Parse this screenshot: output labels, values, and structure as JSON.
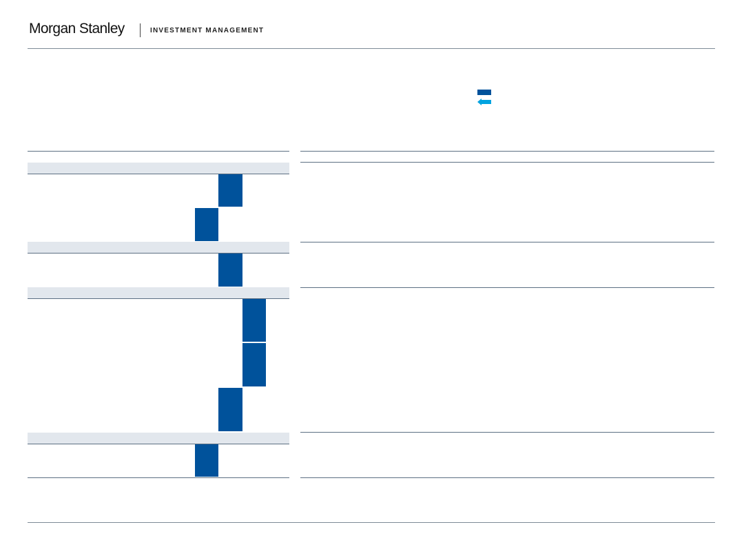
{
  "header": {
    "brand_name": "Morgan Stanley",
    "brand_division": "INVESTMENT MANAGEMENT"
  },
  "legend": {
    "items": [
      {
        "icon": "solid-bar-icon",
        "color": "#00529b"
      },
      {
        "icon": "left-arrow-icon",
        "color": "#00a3e0"
      }
    ]
  },
  "colors": {
    "bar": "#00529b",
    "band": "#e2e7ed",
    "rule": "#5c6f82"
  },
  "table": {
    "groups": [
      {
        "rows": [
          {
            "level": 0
          },
          {
            "level": -1
          }
        ]
      },
      {
        "rows": [
          {
            "level": 0
          }
        ]
      },
      {
        "rows": [
          {
            "level": 1
          },
          {
            "level": 1
          },
          {
            "level": 0
          }
        ]
      },
      {
        "rows": [
          {
            "level": -1
          }
        ]
      }
    ]
  }
}
